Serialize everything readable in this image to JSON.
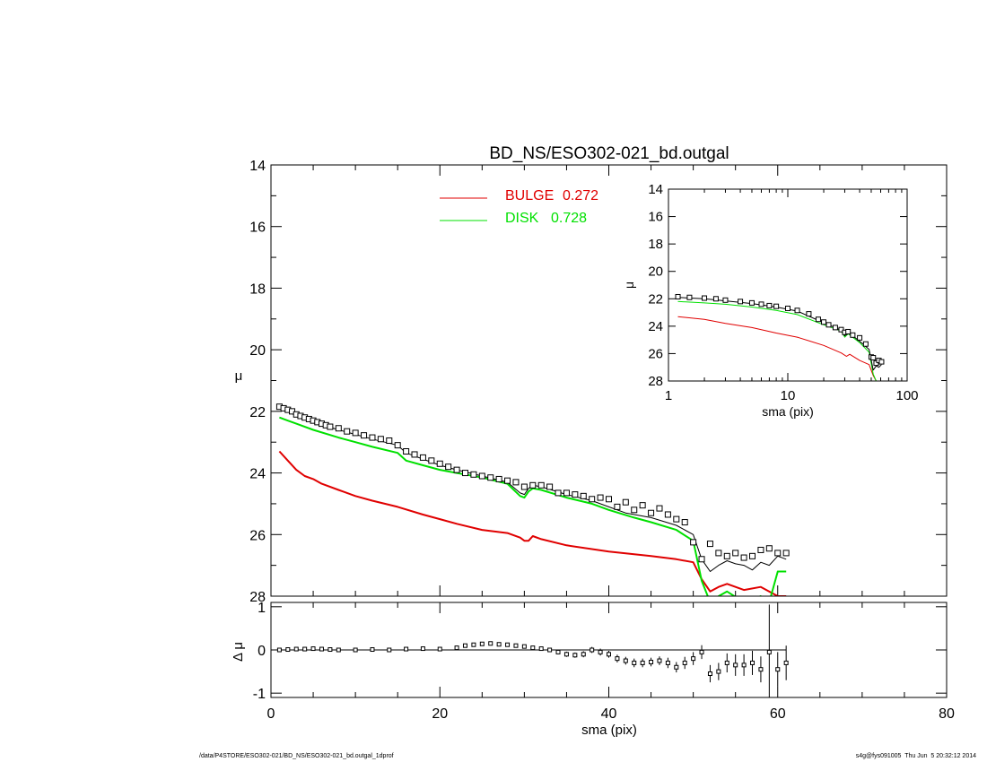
{
  "footer": {
    "left": "/data/P4STORE/ESO302-021/BD_NS/ESO302-021_bd.outgal_1dprof",
    "right": "s4g@fys091005  Thu Jun  5 20:32:12 2014"
  },
  "colors": {
    "bulge": "#e00000",
    "disk": "#00e000",
    "total": "#000000",
    "data": "#000000"
  },
  "chart_data": [
    {
      "type": "line",
      "title": "BD_NS/ESO302-021_bd.outgal",
      "xlabel": "",
      "ylabel": "μ",
      "xlim": [
        0,
        80
      ],
      "ylim": [
        28,
        14
      ],
      "yticks": [
        "14",
        "16",
        "18",
        "20",
        "22",
        "24",
        "26",
        "28"
      ],
      "legend": [
        {
          "label": "BULGE",
          "value": "0.272",
          "color": "#e00000"
        },
        {
          "label": "DISK",
          "value": "0.728",
          "color": "#00e000"
        }
      ],
      "legend_position": "top-center",
      "series": [
        {
          "name": "BULGE",
          "type": "line",
          "x": [
            1,
            2,
            3,
            4,
            5,
            6,
            8,
            10,
            12,
            15,
            18,
            20,
            22,
            25,
            28,
            29.5,
            30,
            30.5,
            31,
            32,
            35,
            40,
            45,
            48,
            50,
            51,
            52,
            53,
            54,
            56,
            58,
            60,
            61
          ],
          "y": [
            23.3,
            23.6,
            23.9,
            24.1,
            24.2,
            24.35,
            24.55,
            24.75,
            24.9,
            25.1,
            25.35,
            25.5,
            25.65,
            25.85,
            25.95,
            26.1,
            26.2,
            26.2,
            26.05,
            26.15,
            26.35,
            26.55,
            26.7,
            26.8,
            26.9,
            27.45,
            27.85,
            27.7,
            27.6,
            27.8,
            27.7,
            28.0,
            28.0
          ]
        },
        {
          "name": "DISK",
          "type": "line",
          "x": [
            1,
            2,
            3,
            5,
            8,
            10,
            12,
            15,
            16,
            18,
            20,
            22,
            25,
            28,
            29.5,
            30,
            30.5,
            31,
            32,
            35,
            38,
            40,
            43,
            45,
            48,
            50,
            51,
            52,
            53,
            54,
            56,
            58,
            59,
            60,
            61
          ],
          "y": [
            22.2,
            22.3,
            22.4,
            22.6,
            22.85,
            23.0,
            23.15,
            23.35,
            23.6,
            23.75,
            23.9,
            24.0,
            24.15,
            24.35,
            24.75,
            24.8,
            24.6,
            24.5,
            24.55,
            24.8,
            25.0,
            25.2,
            25.45,
            25.6,
            25.85,
            26.2,
            27.5,
            28.2,
            28.0,
            27.85,
            28.2,
            28.0,
            28.2,
            27.2,
            27.2
          ]
        },
        {
          "name": "",
          "type": "line",
          "x": [
            1,
            2,
            3,
            5,
            8,
            10,
            12,
            15,
            16,
            18,
            20,
            22,
            25,
            28,
            29.5,
            30,
            30.5,
            31,
            32,
            35,
            38,
            40,
            42,
            45,
            48,
            50,
            51,
            52,
            53,
            54,
            55,
            56,
            57,
            58,
            59,
            60,
            61
          ],
          "y": [
            21.9,
            22.0,
            22.15,
            22.35,
            22.6,
            22.75,
            22.9,
            23.1,
            23.35,
            23.55,
            23.75,
            23.9,
            24.1,
            24.3,
            24.65,
            24.7,
            24.5,
            24.4,
            24.45,
            24.7,
            24.9,
            25.1,
            25.3,
            25.45,
            25.7,
            26.0,
            26.8,
            27.2,
            27.0,
            26.85,
            26.95,
            27.0,
            27.15,
            26.9,
            27.0,
            26.7,
            26.8
          ]
        },
        {
          "name": "",
          "type": "scatter",
          "x": [
            1,
            1.5,
            2,
            2.5,
            3,
            3.5,
            4,
            4.5,
            5,
            5.5,
            6,
            6.5,
            7,
            8,
            9,
            10,
            11,
            12,
            13,
            14,
            15,
            16,
            17,
            18,
            19,
            20,
            21,
            22,
            23,
            24,
            25,
            26,
            27,
            28,
            29,
            30,
            31,
            32,
            33,
            34,
            35,
            36,
            37,
            38,
            39,
            40,
            41,
            42,
            43,
            44,
            45,
            46,
            47,
            48,
            49,
            50,
            51,
            52,
            53,
            54,
            55,
            56,
            57,
            58,
            59,
            60,
            61
          ],
          "y": [
            21.85,
            21.9,
            21.95,
            22.0,
            22.1,
            22.15,
            22.2,
            22.25,
            22.3,
            22.35,
            22.4,
            22.45,
            22.5,
            22.55,
            22.65,
            22.7,
            22.78,
            22.85,
            22.9,
            22.95,
            23.1,
            23.3,
            23.4,
            23.5,
            23.6,
            23.7,
            23.8,
            23.9,
            24.0,
            24.05,
            24.1,
            24.15,
            24.2,
            24.25,
            24.3,
            24.45,
            24.4,
            24.4,
            24.45,
            24.65,
            24.65,
            24.7,
            24.75,
            24.85,
            24.8,
            24.85,
            25.1,
            24.95,
            25.2,
            25.05,
            25.3,
            25.15,
            25.35,
            25.5,
            25.6,
            26.25,
            26.8,
            26.3,
            26.6,
            26.7,
            26.6,
            26.75,
            26.7,
            26.5,
            26.45,
            26.6,
            26.6
          ]
        }
      ]
    },
    {
      "type": "line",
      "title": "",
      "xlabel": "sma (pix)",
      "ylabel": "Δ μ",
      "xlim": [
        0,
        80
      ],
      "ylim": [
        -1.1,
        1.1
      ],
      "xticks": [
        "0",
        "20",
        "40",
        "60",
        "80"
      ],
      "yticks": [
        "1",
        "0",
        "-1"
      ],
      "reference_line": 0,
      "series": [
        {
          "name": "",
          "type": "errorbar",
          "x": [
            1,
            2,
            3,
            4,
            5,
            6,
            7,
            8,
            10,
            12,
            14,
            16,
            18,
            20,
            22,
            23,
            24,
            25,
            26,
            27,
            28,
            29,
            30,
            31,
            32,
            33,
            34,
            35,
            36,
            37,
            38,
            39,
            40,
            41,
            42,
            43,
            44,
            45,
            46,
            47,
            48,
            49,
            50,
            51,
            52,
            53,
            54,
            55,
            56,
            57,
            58,
            59,
            60,
            61
          ],
          "y": [
            0.0,
            0.01,
            0.02,
            0.02,
            0.03,
            0.02,
            0.01,
            0.0,
            0.0,
            0.01,
            0.0,
            0.02,
            0.03,
            0.02,
            0.05,
            0.1,
            0.12,
            0.14,
            0.15,
            0.13,
            0.12,
            0.1,
            0.08,
            0.05,
            0.03,
            0.0,
            -0.05,
            -0.1,
            -0.12,
            -0.1,
            0.0,
            -0.05,
            -0.1,
            -0.2,
            -0.25,
            -0.3,
            -0.3,
            -0.28,
            -0.25,
            -0.3,
            -0.4,
            -0.3,
            -0.2,
            -0.05,
            -0.55,
            -0.5,
            -0.3,
            -0.35,
            -0.35,
            -0.3,
            -0.45,
            -0.05,
            -0.45,
            -0.3
          ],
          "err": [
            0.01,
            0.01,
            0.01,
            0.01,
            0.01,
            0.01,
            0.01,
            0.01,
            0.01,
            0.01,
            0.01,
            0.01,
            0.01,
            0.01,
            0.02,
            0.02,
            0.02,
            0.02,
            0.02,
            0.02,
            0.03,
            0.03,
            0.03,
            0.04,
            0.04,
            0.05,
            0.05,
            0.06,
            0.06,
            0.07,
            0.07,
            0.08,
            0.08,
            0.09,
            0.09,
            0.1,
            0.1,
            0.1,
            0.1,
            0.12,
            0.12,
            0.14,
            0.15,
            0.16,
            0.2,
            0.2,
            0.22,
            0.25,
            0.25,
            0.28,
            0.3,
            1.1,
            0.4,
            0.4
          ]
        }
      ]
    },
    {
      "type": "line",
      "title": "",
      "xlabel": "sma (pix)",
      "ylabel": "μ",
      "xscale": "log",
      "xlim": [
        1,
        100
      ],
      "ylim": [
        28,
        14
      ],
      "xticks": [
        "1",
        "10",
        "100"
      ],
      "yticks": [
        "14",
        "16",
        "18",
        "20",
        "22",
        "24",
        "26",
        "28"
      ],
      "series": [
        {
          "name": "BULGE",
          "type": "line",
          "x": [
            1.2,
            2,
            3,
            5,
            8,
            12,
            20,
            28,
            31,
            33,
            40,
            48,
            52,
            55,
            60
          ],
          "y": [
            23.3,
            23.5,
            23.8,
            24.1,
            24.5,
            24.8,
            25.4,
            25.95,
            26.2,
            26.05,
            26.5,
            26.8,
            27.6,
            28.0,
            28.0
          ]
        },
        {
          "name": "DISK",
          "type": "line",
          "x": [
            1.2,
            2,
            3,
            5,
            8,
            12,
            20,
            28,
            30,
            32,
            40,
            48,
            52,
            55,
            60
          ],
          "y": [
            22.2,
            22.3,
            22.4,
            22.6,
            22.85,
            23.15,
            23.9,
            24.35,
            24.8,
            24.55,
            25.2,
            25.9,
            27.5,
            28.0,
            28.0
          ]
        },
        {
          "name": "",
          "type": "line",
          "x": [
            1.2,
            2,
            3,
            5,
            8,
            12,
            20,
            28,
            30,
            32,
            40,
            48,
            52,
            55,
            58,
            61
          ],
          "y": [
            21.9,
            22.0,
            22.15,
            22.35,
            22.6,
            22.9,
            23.75,
            24.3,
            24.7,
            24.45,
            25.1,
            25.7,
            27.2,
            26.9,
            27.0,
            26.8
          ]
        },
        {
          "name": "",
          "type": "scatter",
          "x": [
            1.2,
            1.5,
            2,
            2.5,
            3,
            4,
            5,
            6,
            7,
            8,
            10,
            12,
            15,
            18,
            20,
            22,
            25,
            28,
            30,
            32,
            35,
            40,
            45,
            50,
            52,
            55,
            58,
            61
          ],
          "y": [
            21.85,
            21.9,
            21.95,
            22.0,
            22.1,
            22.2,
            22.3,
            22.4,
            22.5,
            22.55,
            22.7,
            22.85,
            23.1,
            23.5,
            23.7,
            23.9,
            24.1,
            24.25,
            24.45,
            24.4,
            24.65,
            24.85,
            25.3,
            26.25,
            26.3,
            26.7,
            26.5,
            26.6
          ]
        }
      ]
    }
  ]
}
